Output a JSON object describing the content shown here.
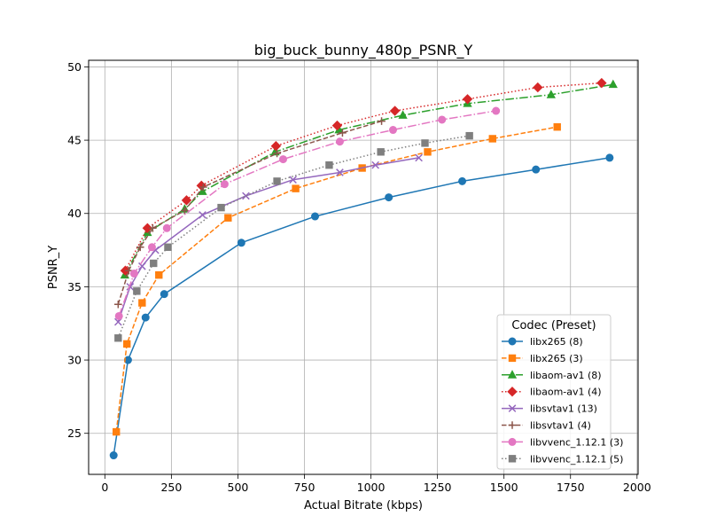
{
  "chart_data": {
    "type": "line",
    "title": "big_buck_bunny_480p_PSNR_Y",
    "xlabel": "Actual Bitrate (kbps)",
    "ylabel": "PSNR_Y",
    "xlim": [
      -61,
      2004
    ],
    "ylim": [
      22.2,
      50.45
    ],
    "xticks": [
      0,
      250,
      500,
      750,
      1000,
      1250,
      1500,
      1750,
      2000
    ],
    "yticks": [
      25,
      30,
      35,
      40,
      45,
      50
    ],
    "grid": true,
    "legend": {
      "title": "Codec (Preset)",
      "placement": "lower-right"
    },
    "series": [
      {
        "name": "libx265 (8)",
        "color": "#1f77b4",
        "linestyle": "solid",
        "marker": "circle",
        "x": [
          33,
          87,
          153,
          223,
          513,
          790,
          1067,
          1343,
          1620,
          1897
        ],
        "y": [
          23.5,
          30.0,
          32.9,
          34.5,
          38.0,
          39.8,
          41.1,
          42.2,
          43.0,
          43.8
        ]
      },
      {
        "name": "libx265 (3)",
        "color": "#ff7f0e",
        "linestyle": "dashed",
        "marker": "square",
        "x": [
          43,
          83,
          140,
          203,
          463,
          717,
          967,
          1213,
          1457,
          1700
        ],
        "y": [
          25.1,
          31.1,
          33.9,
          35.8,
          39.7,
          41.7,
          43.1,
          44.2,
          45.1,
          45.9
        ]
      },
      {
        "name": "libaom-av1 (8)",
        "color": "#2ca02c",
        "linestyle": "dashdot",
        "marker": "triangle",
        "x": [
          75,
          160,
          300,
          367,
          640,
          880,
          1120,
          1363,
          1677,
          1910
        ],
        "y": [
          35.8,
          38.7,
          40.3,
          41.5,
          44.2,
          45.7,
          46.7,
          47.5,
          48.1,
          48.8
        ]
      },
      {
        "name": "libaom-av1 (4)",
        "color": "#d62728",
        "linestyle": "dotted",
        "marker": "diamond",
        "x": [
          77,
          160,
          307,
          363,
          643,
          873,
          1090,
          1363,
          1627,
          1867
        ],
        "y": [
          36.1,
          39.0,
          40.9,
          41.9,
          44.6,
          46.0,
          47.0,
          47.8,
          48.6,
          48.9
        ]
      },
      {
        "name": "libsvtav1 (13)",
        "color": "#9467bd",
        "linestyle": "solid",
        "marker": "x",
        "x": [
          50,
          95,
          140,
          190,
          367,
          530,
          707,
          883,
          1017,
          1180
        ],
        "y": [
          32.6,
          35.0,
          36.4,
          37.5,
          39.9,
          41.2,
          42.3,
          42.8,
          43.3,
          43.8
        ]
      },
      {
        "name": "libsvtav1 (4)",
        "color": "#8c564b",
        "linestyle": "dashed",
        "marker": "plus",
        "x": [
          50,
          90,
          133,
          180,
          300,
          370,
          647,
          893,
          1040
        ],
        "y": [
          33.8,
          36.1,
          37.7,
          39.0,
          40.2,
          41.8,
          44.1,
          45.5,
          46.3
        ]
      },
      {
        "name": "libvvenc_1.12.1 (3)",
        "color": "#e377c2",
        "linestyle": "dashdot",
        "marker": "circle",
        "x": [
          53,
          110,
          177,
          233,
          450,
          670,
          883,
          1083,
          1267,
          1470
        ],
        "y": [
          33.0,
          35.9,
          37.7,
          39.0,
          42.0,
          43.7,
          44.9,
          45.7,
          46.4,
          47.0
        ]
      },
      {
        "name": "libvvenc_1.12.1 (5)",
        "color": "#7f7f7f",
        "linestyle": "dotted",
        "marker": "square",
        "x": [
          50,
          120,
          183,
          237,
          437,
          647,
          843,
          1037,
          1203,
          1370
        ],
        "y": [
          31.5,
          34.7,
          36.6,
          37.7,
          40.4,
          42.2,
          43.3,
          44.2,
          44.8,
          45.3
        ]
      }
    ]
  }
}
